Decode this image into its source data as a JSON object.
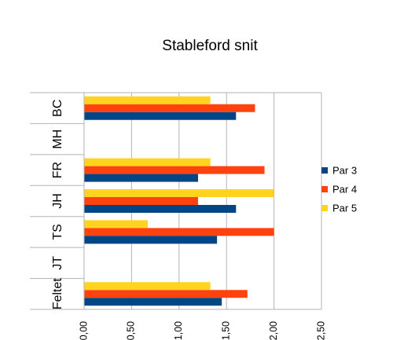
{
  "chart_data": {
    "type": "bar",
    "orientation": "horizontal",
    "title": "Stableford snit",
    "xlabel": "",
    "ylabel": "",
    "categories": [
      "BC",
      "MH",
      "FR",
      "JH",
      "TS",
      "JT",
      "Feltet"
    ],
    "xlim": [
      0,
      2.5
    ],
    "x_ticks": [
      0,
      0.5,
      1.0,
      1.5,
      2.0,
      2.5
    ],
    "x_tick_labels": [
      "0,00",
      "0,50",
      "1,00",
      "1,50",
      "2,00",
      "2,50"
    ],
    "grid": true,
    "legend_position": "right",
    "series": [
      {
        "name": "Par 3",
        "color": "#004586",
        "values": [
          1.6,
          null,
          1.2,
          1.6,
          1.4,
          null,
          1.45
        ]
      },
      {
        "name": "Par 4",
        "color": "#ff420e",
        "values": [
          1.8,
          null,
          1.9,
          1.2,
          2.0,
          null,
          1.72
        ]
      },
      {
        "name": "Par 5",
        "color": "#ffd320",
        "values": [
          1.33,
          null,
          1.33,
          2.0,
          0.67,
          null,
          1.33
        ]
      }
    ]
  }
}
